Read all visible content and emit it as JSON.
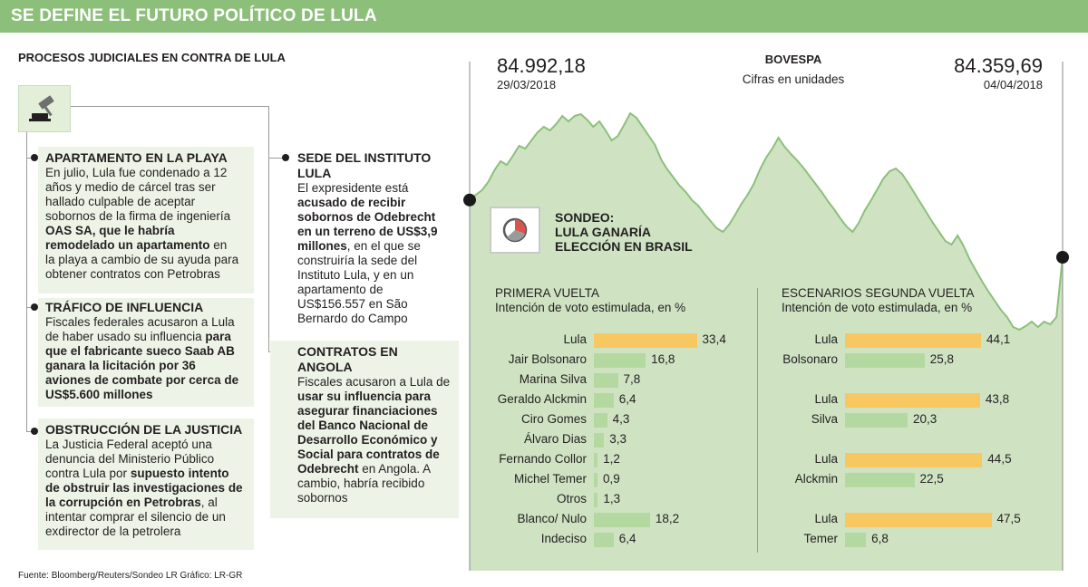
{
  "title": "SE DEFINE EL FUTURO POLÍTICO DE LULA",
  "left_heading": "PROCESOS JUDICIALES EN CONTRA DE LULA",
  "cards": {
    "apartamento": {
      "heading": "APARTAMENTO EN LA PLAYA",
      "lines": [
        [
          {
            "t": "En julio, Lula fue condenado a 12"
          }
        ],
        [
          {
            "t": "años y medio de cárcel tras ser"
          }
        ],
        [
          {
            "t": "hallado culpable de aceptar"
          }
        ],
        [
          {
            "t": "sobornos de la firma de ingeniería"
          }
        ],
        [
          {
            "t": "OAS SA, que le habría",
            "b": true
          }
        ],
        [
          {
            "t": "remodelado un apartamento",
            "b": true
          },
          {
            "t": " en"
          }
        ],
        [
          {
            "t": "la playa a cambio de su ayuda para"
          }
        ],
        [
          {
            "t": "obtener contratos con Petrobras"
          }
        ]
      ]
    },
    "trafico": {
      "heading": "TRÁFICO DE INFLUENCIA",
      "lines": [
        [
          {
            "t": "Fiscales federales acusaron a Lula"
          }
        ],
        [
          {
            "t": "de haber usado su influencia "
          },
          {
            "t": "para",
            "b": true
          }
        ],
        [
          {
            "t": "que el fabricante sueco Saab AB",
            "b": true
          }
        ],
        [
          {
            "t": "ganara la licitación por 36",
            "b": true
          }
        ],
        [
          {
            "t": "aviones de combate por cerca de",
            "b": true
          }
        ],
        [
          {
            "t": "US$5.600 millones",
            "b": true
          }
        ]
      ]
    },
    "obstruccion": {
      "heading": "OBSTRUCCIÓN DE LA JUSTICIA",
      "lines": [
        [
          {
            "t": "La Justicia Federal aceptó una"
          }
        ],
        [
          {
            "t": "denuncia del Ministerio Público"
          }
        ],
        [
          {
            "t": "contra Lula por "
          },
          {
            "t": "supuesto intento",
            "b": true
          }
        ],
        [
          {
            "t": "de obstruir las investigaciones de",
            "b": true
          }
        ],
        [
          {
            "t": "la corrupción en Petrobras",
            "b": true
          },
          {
            "t": ", al"
          }
        ],
        [
          {
            "t": "intentar comprar el silencio de un"
          }
        ],
        [
          {
            "t": "exdirector de la petrolera"
          }
        ]
      ]
    },
    "sede": {
      "heading_lines": [
        "SEDE DEL INSTITUTO",
        "LULA"
      ],
      "lines": [
        [
          {
            "t": "El expresidente está"
          }
        ],
        [
          {
            "t": "acusado de recibir",
            "b": true
          }
        ],
        [
          {
            "t": "sobornos de Odebrecht",
            "b": true
          }
        ],
        [
          {
            "t": "en un terreno de US$3,9",
            "b": true
          }
        ],
        [
          {
            "t": "millones",
            "b": true
          },
          {
            "t": ", en el que se"
          }
        ],
        [
          {
            "t": "construiría la sede del"
          }
        ],
        [
          {
            "t": "Instituto Lula, y en un"
          }
        ],
        [
          {
            "t": "apartamento de"
          }
        ],
        [
          {
            "t": "US$156.557 en São"
          }
        ],
        [
          {
            "t": "Bernardo do Campo"
          }
        ]
      ]
    },
    "angola": {
      "heading_lines": [
        "CONTRATOS EN",
        "ANGOLA"
      ],
      "lines": [
        [
          {
            "t": "Fiscales acusaron a Lula de"
          }
        ],
        [
          {
            "t": "usar su influencia para",
            "b": true
          }
        ],
        [
          {
            "t": "asegurar financiaciones",
            "b": true
          }
        ],
        [
          {
            "t": "del Banco Nacional de",
            "b": true
          }
        ],
        [
          {
            "t": "Desarrollo Económico y",
            "b": true
          }
        ],
        [
          {
            "t": "Social para contratos de",
            "b": true
          }
        ],
        [
          {
            "t": "Odebrecht",
            "b": true
          },
          {
            "t": " en Angola. A"
          }
        ],
        [
          {
            "t": "cambio, habría recibido"
          }
        ],
        [
          {
            "t": "sobornos"
          }
        ]
      ]
    }
  },
  "bovespa": {
    "title": "BOVESPA",
    "subtitle": "Cifras en unidades",
    "start_value": "84.992,18",
    "start_date": "29/03/2018",
    "end_value": "84.359,69",
    "end_date": "04/04/2018"
  },
  "sondeo": {
    "title_lines": [
      "SONDEO:",
      "LULA GANARÍA",
      "ELECCIÓN EN BRASIL"
    ]
  },
  "colors": {
    "header_green": "#8cc07a",
    "card_bg": "#edf4e7",
    "area_fill": "#cfe3c3",
    "area_line": "#8cc07a",
    "bar_green": "#b4d9a0",
    "bar_lula": "#f7c862",
    "pie_red": "#d9534f"
  },
  "chart_data": [
    {
      "type": "area",
      "title": "BOVESPA",
      "subtitle": "Cifras en unidades",
      "x_start": "29/03/2018",
      "x_end": "04/04/2018",
      "y_start": 84992.18,
      "y_end": 84359.69,
      "series": [
        {
          "values": [
            84992,
            85050,
            85100,
            85190,
            85320,
            85420,
            85380,
            85480,
            85590,
            85560,
            85650,
            85740,
            85800,
            85760,
            85830,
            85920,
            85860,
            85920,
            85940,
            85880,
            85800,
            85860,
            85760,
            85650,
            85700,
            85820,
            85950,
            85900,
            85800,
            85700,
            85600,
            85440,
            85330,
            85240,
            85150,
            85080,
            84990,
            84930,
            84840,
            84760,
            84680,
            84640,
            84720,
            84830,
            84950,
            85050,
            85170,
            85330,
            85460,
            85560,
            85680,
            85580,
            85500,
            85430,
            85350,
            85260,
            85170,
            85080,
            84980,
            84890,
            84790,
            84700,
            84640,
            84740,
            84880,
            84990,
            85110,
            85230,
            85310,
            85340,
            85280,
            85180,
            85070,
            84960,
            84850,
            84740,
            84640,
            84540,
            84500,
            84600,
            84480,
            84330,
            84210,
            84090,
            83980,
            83880,
            83780,
            83700,
            83590,
            83560,
            83600,
            83650,
            83590,
            83650,
            83620,
            83700,
            84360
          ]
        }
      ]
    },
    {
      "type": "bar",
      "title": "PRIMERA VUELTA",
      "subtitle": "Intención de voto estimulada, en %",
      "categories": [
        "Lula",
        "Jair Bolsonaro",
        "Marina Silva",
        "Geraldo Alckmin",
        "Ciro Gomes",
        "Álvaro Dias",
        "Fernando Collor",
        "Michel Temer",
        "Otros",
        "Blanco/ Nulo",
        "Indeciso"
      ],
      "values": [
        33.4,
        16.8,
        7.8,
        6.4,
        4.3,
        3.3,
        1.2,
        0.9,
        1.3,
        18.2,
        6.4
      ],
      "labels": [
        "33,4",
        "16,8",
        "7,8",
        "6,4",
        "4,3",
        "3,3",
        "1,2",
        "0,9",
        "1,3",
        "18,2",
        "6,4"
      ]
    },
    {
      "type": "bar",
      "title": "ESCENARIOS SEGUNDA VUELTA",
      "subtitle": "Intención de voto estimulada, en %",
      "scenarios": [
        {
          "categories": [
            "Lula",
            "Bolsonaro"
          ],
          "values": [
            44.1,
            25.8
          ],
          "labels": [
            "44,1",
            "25,8"
          ]
        },
        {
          "categories": [
            "Lula",
            "Silva"
          ],
          "values": [
            43.8,
            20.3
          ],
          "labels": [
            "43,8",
            "20,3"
          ]
        },
        {
          "categories": [
            "Lula",
            "Alckmin"
          ],
          "values": [
            44.5,
            22.5
          ],
          "labels": [
            "44,5",
            "22,5"
          ]
        },
        {
          "categories": [
            "Lula",
            "Temer"
          ],
          "values": [
            47.5,
            6.8
          ],
          "labels": [
            "47,5",
            "6,8"
          ]
        }
      ]
    }
  ],
  "footer": "Fuente: Bloomberg/Reuters/Sondeo LR   Gráfico: LR-GR"
}
